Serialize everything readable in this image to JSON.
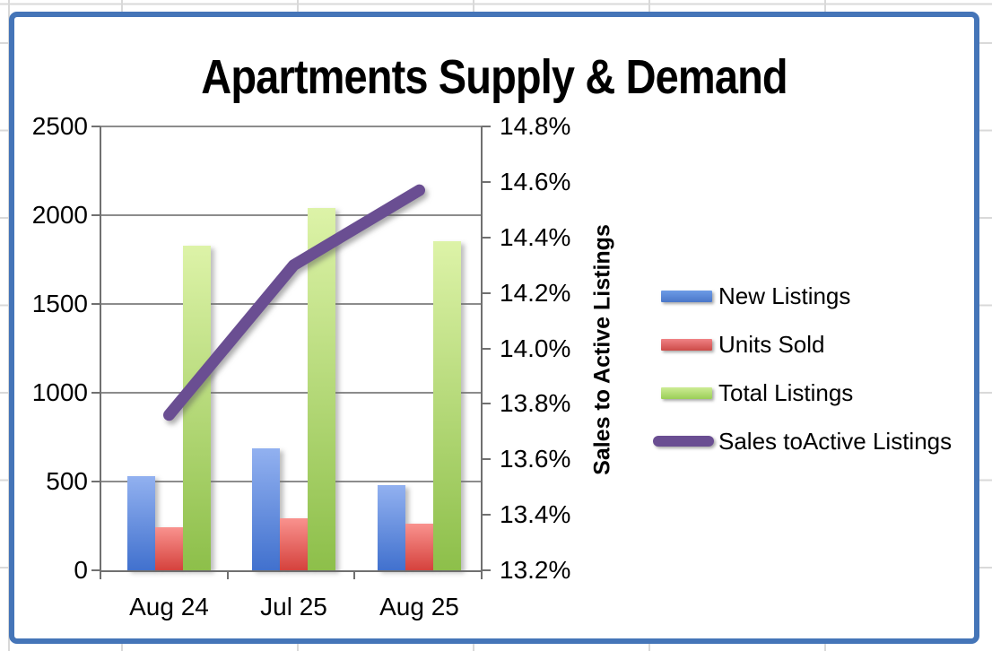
{
  "chart_data": {
    "type": "combo",
    "title": "Apartments Supply & Demand",
    "categories": [
      "Aug 24",
      "Jul 25",
      "Aug 25"
    ],
    "series": [
      {
        "name": "New Listings",
        "type": "bar",
        "axis": "left",
        "values": [
          530,
          685,
          480
        ],
        "color_top": "#92B1F0",
        "color_bottom": "#4171CE"
      },
      {
        "name": "Units Sold",
        "type": "bar",
        "axis": "left",
        "values": [
          245,
          295,
          265
        ],
        "color_top": "#F9928E",
        "color_bottom": "#D5423D"
      },
      {
        "name": "Total Listings",
        "type": "bar",
        "axis": "left",
        "values": [
          1830,
          2040,
          1855
        ],
        "color_top": "#DDF3A8",
        "color_bottom": "#8DBF4A"
      },
      {
        "name": "Sales toActive Listings",
        "type": "line",
        "axis": "right",
        "values": [
          13.76,
          14.3,
          14.57
        ],
        "color": "#6A4E92"
      }
    ],
    "left_axis": {
      "min": 0,
      "max": 2500,
      "step": 500,
      "tick_labels": [
        "2500",
        "2000",
        "1500",
        "1000",
        "500",
        "0"
      ]
    },
    "right_axis": {
      "min": 13.2,
      "max": 14.8,
      "step": 0.2,
      "title": "Sales to Active Listings",
      "tick_labels": [
        "14.8%",
        "14.6%",
        "14.4%",
        "14.2%",
        "14.0%",
        "13.8%",
        "13.6%",
        "13.4%",
        "13.2%"
      ]
    },
    "legend_position": "right",
    "grid": "horizontal gridlines only"
  },
  "colors": {
    "frame_border": "#4575B8",
    "sheet_gridline": "#D9D9D9",
    "plot_gridline": "#8C8C8C",
    "axis_line": "#707070",
    "text": "#000000",
    "line_series": "#6A4E92"
  }
}
